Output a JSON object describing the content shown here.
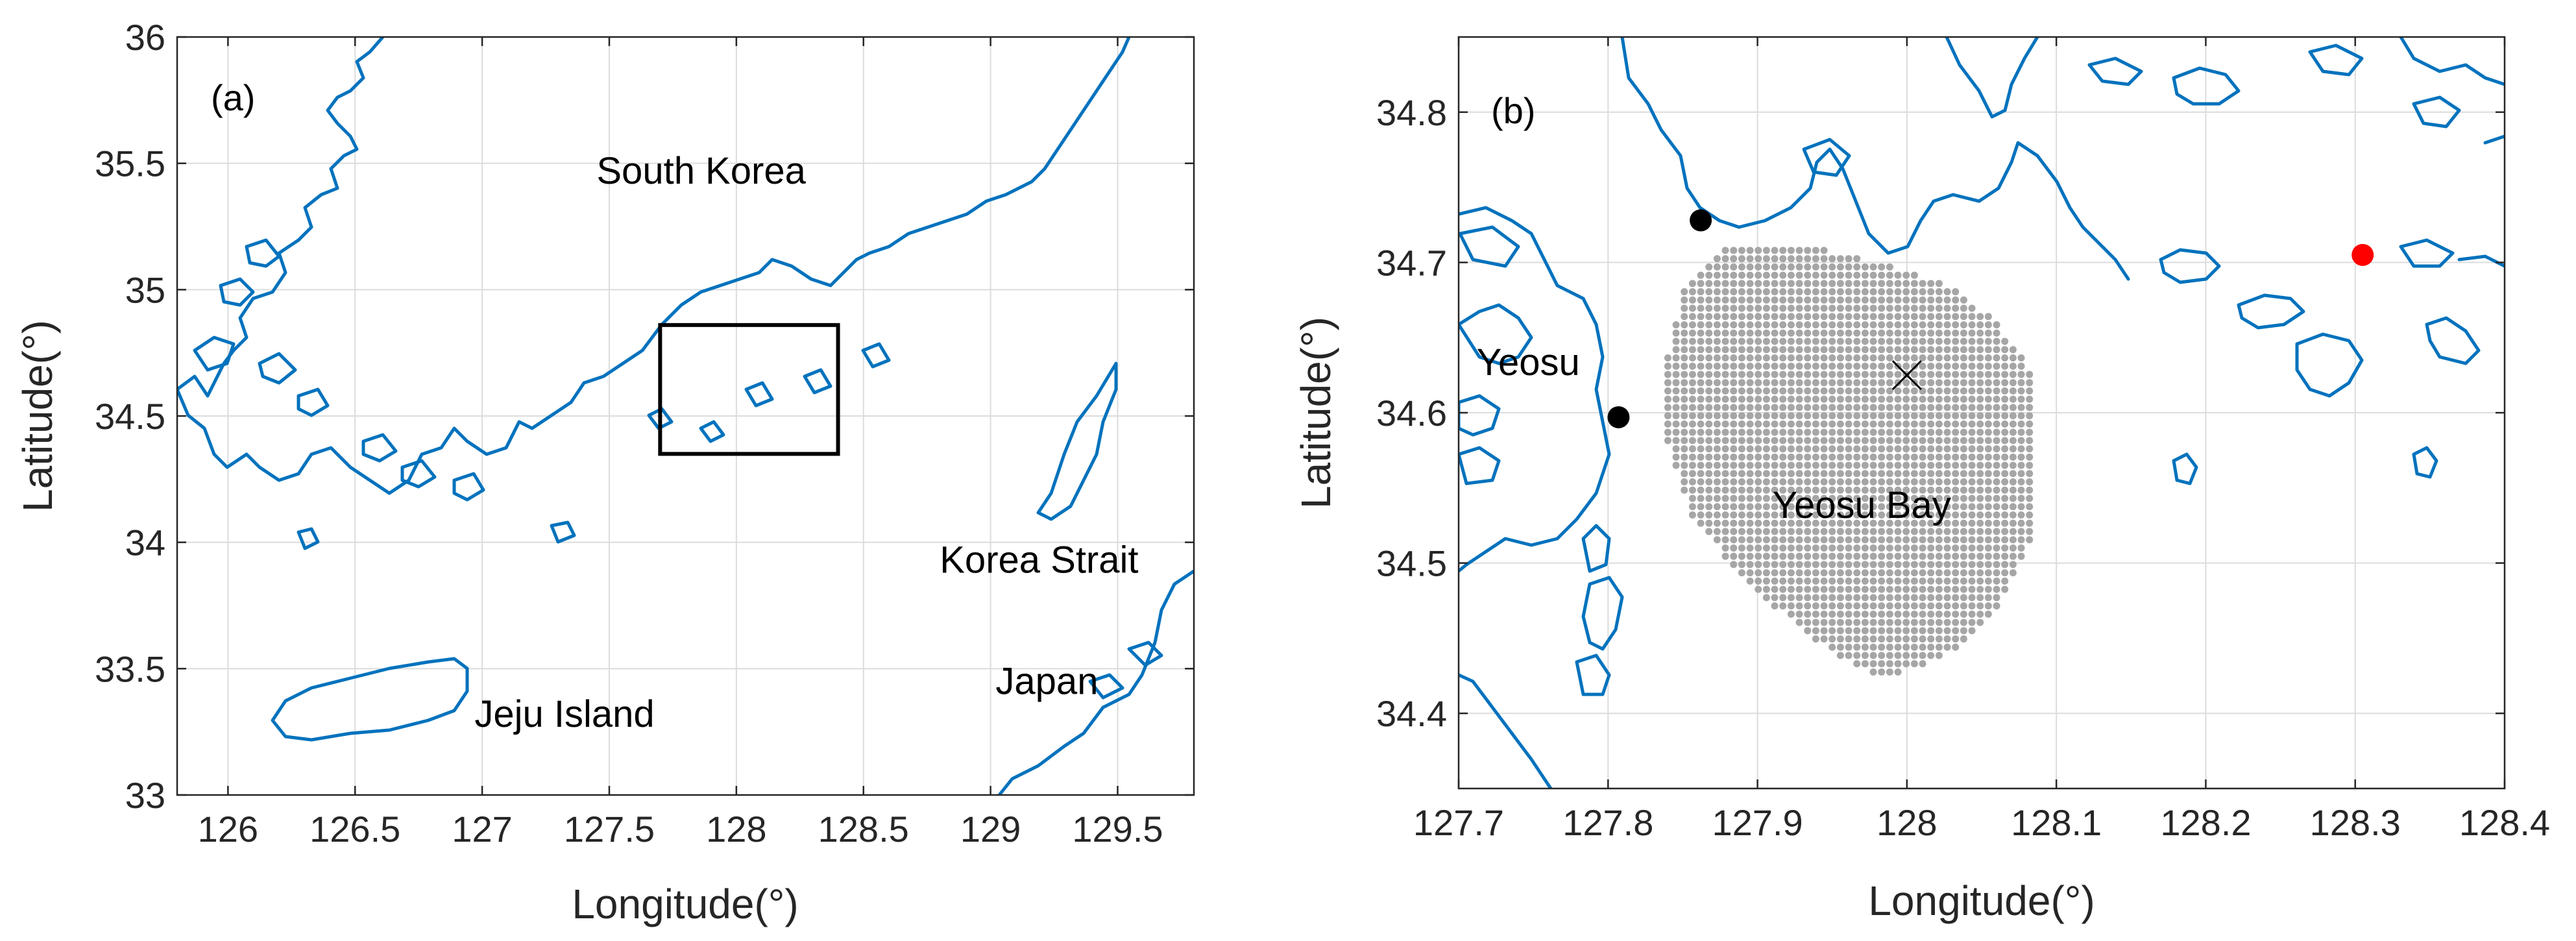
{
  "colors": {
    "coastline": "#0072bd",
    "grid_points": "#a6a6a6",
    "station_black": "#000000",
    "station_red": "#ff0000",
    "axes": "#262626",
    "grid": "#dcdcdc"
  },
  "panel_a": {
    "label": "(a)",
    "xlabel": "Longitude(°)",
    "ylabel": "Latitude(°)",
    "xlim": [
      125.8,
      129.8
    ],
    "ylim": [
      33,
      36
    ],
    "xticks": [
      126,
      126.5,
      127,
      127.5,
      128,
      128.5,
      129,
      129.5
    ],
    "yticks": [
      33,
      33.5,
      34,
      34.5,
      35,
      35.5,
      36
    ],
    "xtick_labels": [
      "126",
      "126.5",
      "127",
      "127.5",
      "128",
      "128.5",
      "129",
      "129.5"
    ],
    "ytick_labels": [
      "33",
      "33.5",
      "34",
      "34.5",
      "35",
      "35.5",
      "36"
    ],
    "annotations": [
      {
        "text": "South Korea",
        "lon": 127.45,
        "lat": 35.42
      },
      {
        "text": "Korea Strait",
        "lon": 128.8,
        "lat": 33.88
      },
      {
        "text": "Jeju Island",
        "lon": 126.97,
        "lat": 33.27
      },
      {
        "text": "Japan",
        "lon": 129.02,
        "lat": 33.4
      }
    ],
    "study_box": {
      "lon_min": 127.7,
      "lon_max": 128.4,
      "lat_min": 34.35,
      "lat_max": 34.86
    }
  },
  "panel_b": {
    "label": "(b)",
    "xlabel": "Longitude(°)",
    "ylabel": "Latitude(°)",
    "xlim": [
      127.7,
      128.4
    ],
    "ylim": [
      34.35,
      34.85
    ],
    "xticks": [
      127.7,
      127.8,
      127.9,
      128,
      128.1,
      128.2,
      128.3,
      128.4
    ],
    "yticks": [
      34.4,
      34.5,
      34.6,
      34.7,
      34.8
    ],
    "xtick_labels": [
      "127.7",
      "127.8",
      "127.9",
      "128",
      "128.1",
      "128.2",
      "128.3",
      "128.4"
    ],
    "ytick_labels": [
      "34.4",
      "34.5",
      "34.6",
      "34.7",
      "34.8"
    ],
    "annotations": [
      {
        "text": "Yeosu",
        "lon": 127.712,
        "lat": 34.625
      },
      {
        "text": "Yeosu Bay",
        "lon": 127.91,
        "lat": 34.53
      }
    ],
    "stations": [
      {
        "lon": 127.862,
        "lat": 34.728,
        "color": "#000000"
      },
      {
        "lon": 127.807,
        "lat": 34.597,
        "color": "#000000"
      },
      {
        "lon": 128.305,
        "lat": 34.705,
        "color": "#ff0000"
      }
    ],
    "center_marker": {
      "lon": 128.0,
      "lat": 34.625
    },
    "grid_region": {
      "lon_step": 0.0055,
      "lat_step": 0.0055,
      "polygon": [
        [
          127.85,
          34.68
        ],
        [
          127.875,
          34.71
        ],
        [
          127.93,
          34.712
        ],
        [
          127.98,
          34.7
        ],
        [
          128.03,
          34.685
        ],
        [
          128.06,
          34.66
        ],
        [
          128.085,
          34.625
        ],
        [
          128.085,
          34.52
        ],
        [
          128.06,
          34.47
        ],
        [
          128.03,
          34.44
        ],
        [
          127.985,
          34.422
        ],
        [
          127.95,
          34.44
        ],
        [
          127.9,
          34.48
        ],
        [
          127.855,
          34.53
        ],
        [
          127.84,
          34.58
        ],
        [
          127.84,
          34.64
        ]
      ]
    }
  }
}
